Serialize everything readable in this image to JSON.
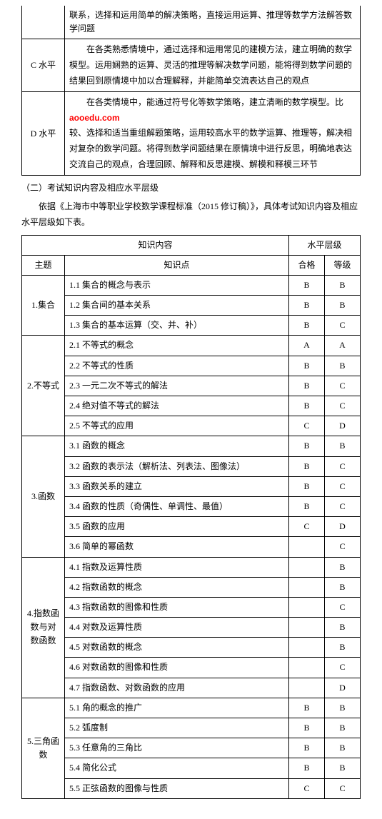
{
  "levels_table": {
    "rows": [
      {
        "label": "",
        "desc": "联系，选择和运用简单的解决策略，直接运用运算、推理等数学方法解答数学问题"
      },
      {
        "label": "C 水平",
        "desc": "　　在各类熟悉情境中，通过选择和运用常见的建模方法，建立明确的数学模型。运用娴熟的运算、灵活的推理等解决数学问题，能将得到数学问题的结果回到原情境中加以合理解释，并能简单交流表达自己的观点"
      },
      {
        "label": "D 水平",
        "desc_pre": "　　在各类情境中，能通过符号化等数学策略，建立清晰的数学模型。比",
        "watermark": "aooedu.com",
        "desc_post": "较、选择和适当重组解题策略，运用较高水平的数学运算、推理等，解决相对复杂的数学问题。将得到数学问题结果在原情境中进行反思，明确地表达交流自己的观点，合理回顾、解释和反思建模、解模和释模三环节"
      }
    ]
  },
  "section_label": "（二）考试知识内容及相应水平层级",
  "body1": "　　依据《上海市中等职业学校数学课程标准（2015 修订稿）》，具体考试知识内容及相应水平层级如下表。",
  "knowledge": {
    "headers": {
      "content": "知识内容",
      "level": "水平层级",
      "theme": "主题",
      "point": "知识点",
      "pass": "合格",
      "grade": "等级"
    },
    "groups": [
      {
        "theme": "1.集合",
        "rows": [
          {
            "p": "1.1 集合的概念与表示",
            "a": "B",
            "b": "B"
          },
          {
            "p": "1.2 集合间的基本关系",
            "a": "B",
            "b": "B"
          },
          {
            "p": "1.3 集合的基本运算（交、并、补）",
            "a": "B",
            "b": "C"
          }
        ]
      },
      {
        "theme": "2.不等式",
        "rows": [
          {
            "p": "2.1 不等式的概念",
            "a": "A",
            "b": "A"
          },
          {
            "p": "2.2 不等式的性质",
            "a": "B",
            "b": "B"
          },
          {
            "p": "2.3 一元二次不等式的解法",
            "a": "B",
            "b": "C"
          },
          {
            "p": "2.4 绝对值不等式的解法",
            "a": "B",
            "b": "C"
          },
          {
            "p": "2.5 不等式的应用",
            "a": "C",
            "b": "D"
          }
        ]
      },
      {
        "theme": "3.函数",
        "rows": [
          {
            "p": "3.1 函数的概念",
            "a": "B",
            "b": "B"
          },
          {
            "p": "3.2 函数的表示法（解析法、列表法、图像法）",
            "a": "B",
            "b": "C"
          },
          {
            "p": "3.3 函数关系的建立",
            "a": "B",
            "b": "C"
          },
          {
            "p": "3.4 函数的性质（奇偶性、单调性、最值）",
            "a": "B",
            "b": "C"
          },
          {
            "p": "3.5 函数的应用",
            "a": "C",
            "b": "D"
          },
          {
            "p": "3.6 简单的幂函数",
            "a": "",
            "b": "C"
          }
        ]
      },
      {
        "theme": "4.指数函数与对数函数",
        "rows": [
          {
            "p": "4.1 指数及运算性质",
            "a": "",
            "b": "B"
          },
          {
            "p": "4.2 指数函数的概念",
            "a": "",
            "b": "B"
          },
          {
            "p": "4.3 指数函数的图像和性质",
            "a": "",
            "b": "C"
          },
          {
            "p": "4.4 对数及运算性质",
            "a": "",
            "b": "B"
          },
          {
            "p": "4.5 对数函数的概念",
            "a": "",
            "b": "B"
          },
          {
            "p": "4.6 对数函数的图像和性质",
            "a": "",
            "b": "C"
          },
          {
            "p": "4.7 指数函数、对数函数的应用",
            "a": "",
            "b": "D"
          }
        ]
      },
      {
        "theme": "5.三角函数",
        "rows": [
          {
            "p": "5.1 角的概念的推广",
            "a": "B",
            "b": "B"
          },
          {
            "p": "5.2 弧度制",
            "a": "B",
            "b": "B"
          },
          {
            "p": "5.3 任意角的三角比",
            "a": "B",
            "b": "B"
          },
          {
            "p": "5.4 简化公式",
            "a": "B",
            "b": "B"
          },
          {
            "p": "5.5 正弦函数的图像与性质",
            "a": "C",
            "b": "C"
          }
        ]
      }
    ]
  }
}
